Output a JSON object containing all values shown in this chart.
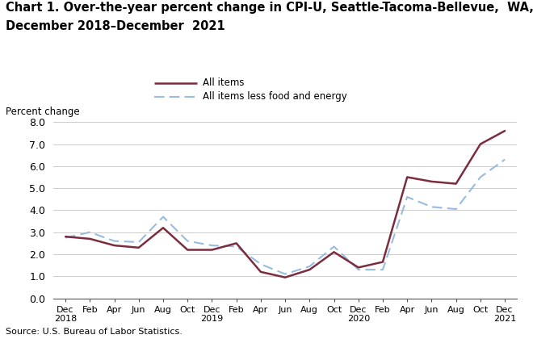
{
  "title_line1": "Chart 1. Over-the-year percent change in CPI-U, Seattle-Tacoma-Bellevue,  WA,",
  "title_line2": "December 2018–December  2021",
  "ylabel": "Percent change",
  "source": "Source: U.S. Bureau of Labor Statistics.",
  "ylim": [
    0.0,
    8.0
  ],
  "yticks": [
    0.0,
    1.0,
    2.0,
    3.0,
    4.0,
    5.0,
    6.0,
    7.0,
    8.0
  ],
  "x_labels": [
    "Dec\n2018",
    "Feb",
    "Apr",
    "Jun",
    "Aug",
    "Oct",
    "Dec\n2019",
    "Feb",
    "Apr",
    "Jun",
    "Aug",
    "Oct",
    "Dec\n2020",
    "Feb",
    "Apr",
    "Jun",
    "Aug",
    "Oct",
    "Dec\n2021"
  ],
  "all_items": [
    2.8,
    2.7,
    2.4,
    2.3,
    3.2,
    2.2,
    2.2,
    2.5,
    1.2,
    0.95,
    1.3,
    2.1,
    1.4,
    1.65,
    5.5,
    5.3,
    5.2,
    7.0,
    7.6
  ],
  "all_items_less": [
    2.75,
    3.0,
    2.6,
    2.55,
    3.7,
    2.6,
    2.4,
    2.35,
    1.55,
    1.1,
    1.45,
    2.35,
    1.3,
    1.3,
    4.6,
    4.15,
    4.05,
    5.5,
    6.3
  ],
  "all_items_color": "#7B2D3E",
  "all_items_less_color": "#99BBDD",
  "legend_label_1": "All items",
  "legend_label_2": "All items less food and energy"
}
